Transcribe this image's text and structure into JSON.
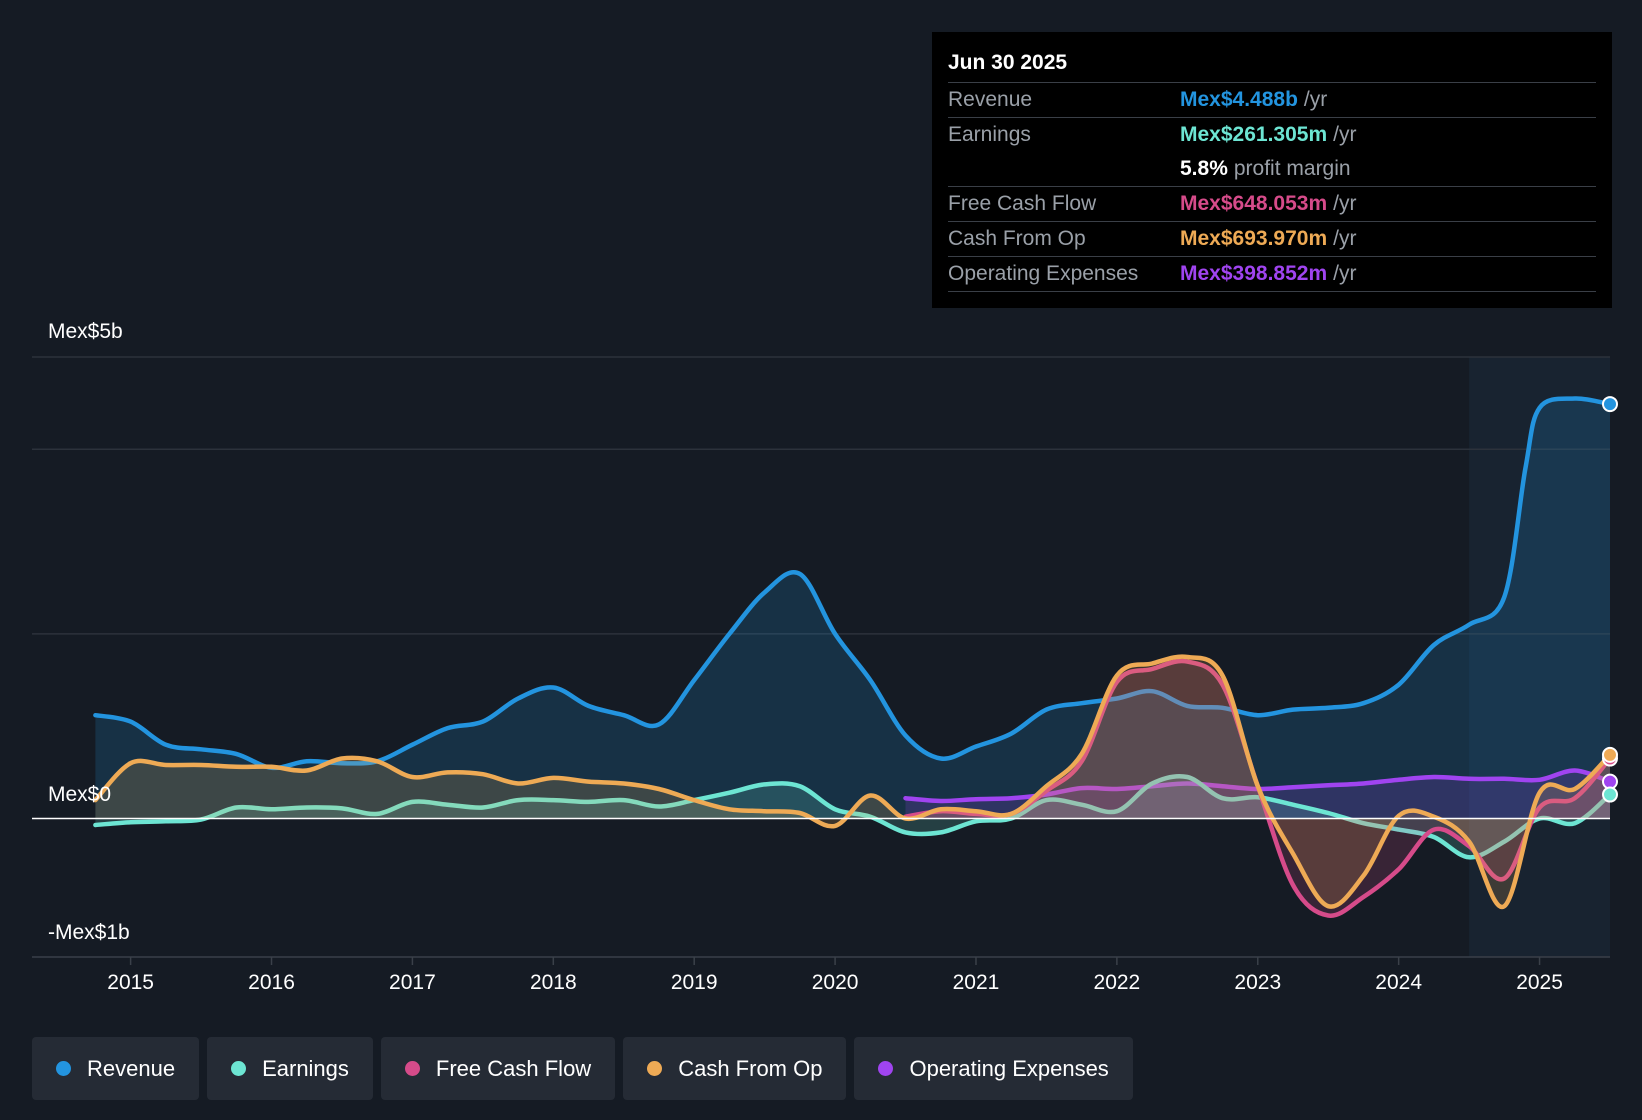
{
  "colors": {
    "background": "#151b24",
    "revenue": "#2394df",
    "earnings": "#6de5d3",
    "free_cash_flow": "#d64b8a",
    "cash_from_op": "#eeaa55",
    "operating_expenses": "#a044f0",
    "gridline": "#2c323b"
  },
  "tooltip": {
    "date": "Jun 30 2025",
    "rows": [
      {
        "label": "Revenue",
        "value": "Mex$4.488b",
        "unit": "/yr",
        "color": "#2394df"
      },
      {
        "label": "Earnings",
        "value": "Mex$261.305m",
        "unit": "/yr",
        "color": "#6de5d3"
      },
      {
        "label": "",
        "value": "5.8%",
        "unit": "profit margin",
        "color": "#ffffff"
      },
      {
        "label": "Free Cash Flow",
        "value": "Mex$648.053m",
        "unit": "/yr",
        "color": "#d64b8a"
      },
      {
        "label": "Cash From Op",
        "value": "Mex$693.970m",
        "unit": "/yr",
        "color": "#eeaa55"
      },
      {
        "label": "Operating Expenses",
        "value": "Mex$398.852m",
        "unit": "/yr",
        "color": "#a044f0"
      }
    ]
  },
  "legend": [
    {
      "label": "Revenue",
      "color": "#2394df"
    },
    {
      "label": "Earnings",
      "color": "#6de5d3"
    },
    {
      "label": "Free Cash Flow",
      "color": "#d64b8a"
    },
    {
      "label": "Cash From Op",
      "color": "#eeaa55"
    },
    {
      "label": "Operating Expenses",
      "color": "#a044f0"
    }
  ],
  "chart_data": {
    "type": "line",
    "title": "",
    "xlabel": "",
    "ylabel": "",
    "y_tick_labels": {
      "top": "Mex$5b",
      "zero": "Mex$0",
      "bottom": "-Mex$1b"
    },
    "ylim": [
      -1.5,
      5
    ],
    "xlim": [
      2014.3,
      2025.5
    ],
    "x_ticks": [
      2015,
      2016,
      2017,
      2018,
      2019,
      2020,
      2021,
      2022,
      2023,
      2024,
      2025
    ],
    "x_tick_labels": [
      "2015",
      "2016",
      "2017",
      "2018",
      "2019",
      "2020",
      "2021",
      "2022",
      "2023",
      "2024",
      "2025"
    ],
    "gridlines_y": [
      5,
      4,
      2,
      0
    ],
    "highlight_from": 2024.5,
    "series": [
      {
        "name": "Revenue",
        "key": "revenue",
        "fill": true,
        "x": [
          2014.75,
          2015.0,
          2015.25,
          2015.5,
          2015.75,
          2016.0,
          2016.25,
          2016.5,
          2016.75,
          2017.0,
          2017.25,
          2017.5,
          2017.75,
          2018.0,
          2018.25,
          2018.5,
          2018.75,
          2019.0,
          2019.25,
          2019.5,
          2019.75,
          2020.0,
          2020.25,
          2020.5,
          2020.75,
          2021.0,
          2021.25,
          2021.5,
          2021.75,
          2022.0,
          2022.25,
          2022.5,
          2022.75,
          2023.0,
          2023.25,
          2023.5,
          2023.75,
          2024.0,
          2024.25,
          2024.5,
          2024.75,
          2024.9,
          2025.0,
          2025.25,
          2025.5
        ],
        "values": [
          1.12,
          1.05,
          0.8,
          0.75,
          0.7,
          0.55,
          0.62,
          0.6,
          0.62,
          0.8,
          0.98,
          1.05,
          1.3,
          1.42,
          1.22,
          1.12,
          1.02,
          1.5,
          2.0,
          2.45,
          2.65,
          2.0,
          1.5,
          0.9,
          0.65,
          0.78,
          0.92,
          1.18,
          1.25,
          1.3,
          1.38,
          1.22,
          1.2,
          1.12,
          1.18,
          1.2,
          1.25,
          1.45,
          1.88,
          2.1,
          2.4,
          3.8,
          4.45,
          4.55,
          4.49
        ]
      },
      {
        "name": "Operating Expenses",
        "key": "operating_expenses",
        "fill": true,
        "x": [
          2020.5,
          2020.75,
          2021.0,
          2021.25,
          2021.5,
          2021.75,
          2022.0,
          2022.25,
          2022.5,
          2022.75,
          2023.0,
          2023.25,
          2023.5,
          2023.75,
          2024.0,
          2024.25,
          2024.5,
          2024.75,
          2025.0,
          2025.25,
          2025.5
        ],
        "values": [
          0.22,
          0.19,
          0.21,
          0.22,
          0.26,
          0.33,
          0.32,
          0.35,
          0.38,
          0.35,
          0.32,
          0.34,
          0.36,
          0.38,
          0.42,
          0.45,
          0.43,
          0.43,
          0.42,
          0.52,
          0.4
        ]
      },
      {
        "name": "Earnings",
        "key": "earnings",
        "fill": true,
        "x": [
          2014.75,
          2015.0,
          2015.25,
          2015.5,
          2015.75,
          2016.0,
          2016.25,
          2016.5,
          2016.75,
          2017.0,
          2017.25,
          2017.5,
          2017.75,
          2018.0,
          2018.25,
          2018.5,
          2018.75,
          2019.0,
          2019.25,
          2019.5,
          2019.75,
          2020.0,
          2020.25,
          2020.5,
          2020.75,
          2021.0,
          2021.25,
          2021.5,
          2021.75,
          2022.0,
          2022.25,
          2022.5,
          2022.75,
          2023.0,
          2023.25,
          2023.5,
          2023.75,
          2024.0,
          2024.25,
          2024.5,
          2024.75,
          2025.0,
          2025.25,
          2025.5
        ],
        "values": [
          -0.07,
          -0.04,
          -0.03,
          -0.01,
          0.12,
          0.1,
          0.12,
          0.11,
          0.05,
          0.18,
          0.15,
          0.12,
          0.2,
          0.2,
          0.18,
          0.2,
          0.13,
          0.2,
          0.28,
          0.37,
          0.35,
          0.1,
          0.02,
          -0.15,
          -0.15,
          -0.03,
          0.0,
          0.2,
          0.15,
          0.08,
          0.38,
          0.45,
          0.22,
          0.23,
          0.15,
          0.06,
          -0.05,
          -0.12,
          -0.2,
          -0.42,
          -0.25,
          0.0,
          -0.05,
          0.26
        ]
      },
      {
        "name": "Free Cash Flow",
        "key": "free_cash_flow",
        "fill": true,
        "x": [
          2020.5,
          2020.75,
          2021.0,
          2021.25,
          2021.5,
          2021.75,
          2022.0,
          2022.25,
          2022.5,
          2022.75,
          2023.0,
          2023.25,
          2023.5,
          2023.75,
          2024.0,
          2024.25,
          2024.5,
          2024.75,
          2025.0,
          2025.25,
          2025.5
        ],
        "values": [
          0.02,
          0.08,
          0.05,
          0.05,
          0.3,
          0.62,
          1.48,
          1.62,
          1.7,
          1.45,
          0.35,
          -0.72,
          -1.05,
          -0.85,
          -0.55,
          -0.12,
          -0.3,
          -0.65,
          0.12,
          0.22,
          0.65
        ]
      },
      {
        "name": "Cash From Op",
        "key": "cash_from_op",
        "fill": true,
        "x": [
          2014.75,
          2015.0,
          2015.25,
          2015.5,
          2015.75,
          2016.0,
          2016.25,
          2016.5,
          2016.75,
          2017.0,
          2017.25,
          2017.5,
          2017.75,
          2018.0,
          2018.25,
          2018.5,
          2018.75,
          2019.0,
          2019.25,
          2019.5,
          2019.75,
          2020.0,
          2020.25,
          2020.5,
          2020.75,
          2021.0,
          2021.25,
          2021.5,
          2021.75,
          2022.0,
          2022.25,
          2022.5,
          2022.75,
          2023.0,
          2023.25,
          2023.5,
          2023.75,
          2024.0,
          2024.25,
          2024.5,
          2024.75,
          2025.0,
          2025.25,
          2025.5
        ],
        "values": [
          0.2,
          0.6,
          0.58,
          0.58,
          0.56,
          0.56,
          0.52,
          0.65,
          0.62,
          0.45,
          0.5,
          0.48,
          0.38,
          0.44,
          0.4,
          0.38,
          0.32,
          0.2,
          0.1,
          0.08,
          0.06,
          -0.08,
          0.25,
          0.0,
          0.1,
          0.08,
          0.05,
          0.35,
          0.7,
          1.55,
          1.68,
          1.75,
          1.55,
          0.35,
          -0.38,
          -0.95,
          -0.62,
          0.03,
          0.02,
          -0.25,
          -0.95,
          0.28,
          0.32,
          0.69
        ]
      }
    ]
  }
}
